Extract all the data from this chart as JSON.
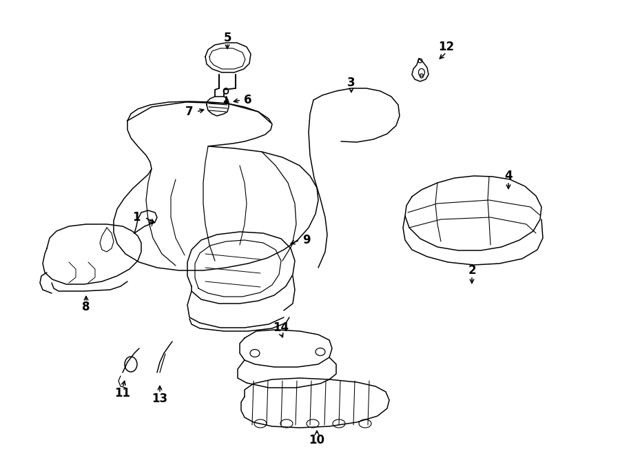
{
  "background_color": "#ffffff",
  "line_color": "#000000",
  "fig_width": 9.0,
  "fig_height": 6.61,
  "dpi": 100,
  "lw": 1.1,
  "fontsize": 12
}
